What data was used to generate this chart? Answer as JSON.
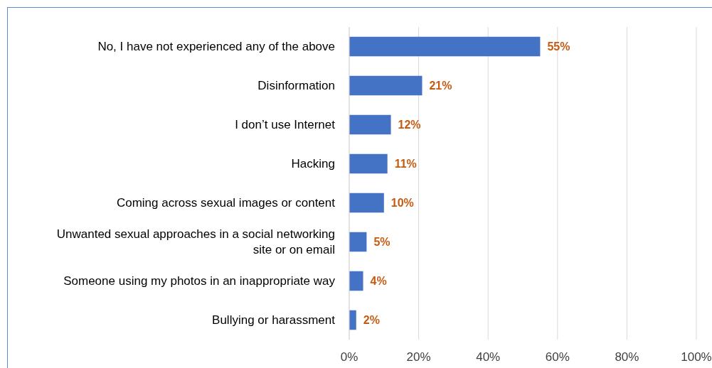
{
  "chart_data": {
    "type": "bar",
    "orientation": "horizontal",
    "categories": [
      "No, I have not experienced any of the above",
      "Disinformation",
      "I don’t use Internet",
      "Hacking",
      "Coming across sexual images or content",
      "Unwanted sexual approaches in a social networking site or on email",
      "Someone using my photos in an inappropriate way",
      "Bullying or harassment"
    ],
    "values": [
      55,
      21,
      12,
      11,
      10,
      5,
      4,
      2
    ],
    "value_labels": [
      "55%",
      "21%",
      "12%",
      "11%",
      "10%",
      "5%",
      "4%",
      "2%"
    ],
    "color": "#4472c4",
    "xlim": [
      0,
      100
    ],
    "xticks": [
      {
        "value": 0,
        "label": "0%"
      },
      {
        "value": 20,
        "label": "20%"
      },
      {
        "value": 40,
        "label": "40%"
      },
      {
        "value": 60,
        "label": "60%"
      },
      {
        "value": 80,
        "label": "80%"
      },
      {
        "value": 100,
        "label": "100%"
      }
    ],
    "grid": "x"
  }
}
